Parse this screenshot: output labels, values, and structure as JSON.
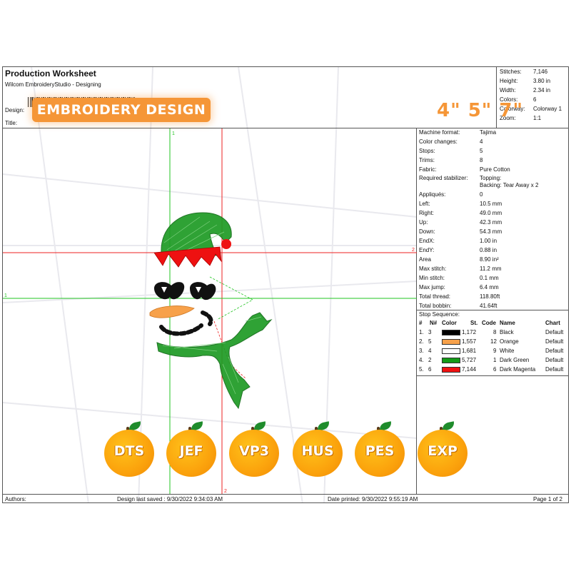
{
  "header": {
    "title": "Production Worksheet",
    "subtitle": "Wilcom EmbroideryStudio - Designing",
    "design_label": "Design:",
    "title_label": "Title:"
  },
  "badge": {
    "text": "EMBROIDERY DESIGN"
  },
  "sizes": {
    "text": "4\" 5\" 7\""
  },
  "stats": [
    {
      "label": "Stitches:",
      "value": "7,146"
    },
    {
      "label": "Height:",
      "value": "3.80 in"
    },
    {
      "label": "Width:",
      "value": "2.34 in"
    },
    {
      "label": "Colors:",
      "value": "6"
    },
    {
      "label": "Colorway:",
      "value": "Colorway 1"
    },
    {
      "label": "Zoom:",
      "value": "1:1"
    }
  ],
  "machine": [
    {
      "label": "Machine format:",
      "value": "Tajima"
    },
    {
      "label": "Color changes:",
      "value": "4"
    },
    {
      "label": "Stops:",
      "value": "5"
    },
    {
      "label": "Trims:",
      "value": "8"
    },
    {
      "label": "Fabric:",
      "value": "Pure Cotton"
    },
    {
      "label": "Required stabilizer:",
      "value": "Topping:"
    },
    {
      "label": "",
      "value": "Backing: Tear Away x 2"
    },
    {
      "label": "Appliqués:",
      "value": "0"
    },
    {
      "label": "Left:",
      "value": "10.5 mm"
    },
    {
      "label": "Right:",
      "value": "49.0 mm"
    },
    {
      "label": "Up:",
      "value": "42.3 mm"
    },
    {
      "label": "Down:",
      "value": "54.3 mm"
    },
    {
      "label": "EndX:",
      "value": "1.00 in"
    },
    {
      "label": "EndY:",
      "value": "0.88 in"
    },
    {
      "label": "Area",
      "value": "8.90 in²"
    },
    {
      "label": "Max stitch:",
      "value": "11.2 mm"
    },
    {
      "label": "Min stitch:",
      "value": "0.1 mm"
    },
    {
      "label": "Max jump:",
      "value": "6.4 mm"
    },
    {
      "label": "Total thread:",
      "value": "118.80ft"
    },
    {
      "label": "Total bobbin:",
      "value": "41.64ft"
    }
  ],
  "stop_sequence": {
    "title": "Stop Sequence:",
    "headers": {
      "num": "#",
      "n": "N#",
      "color": "Color",
      "st": "St.",
      "code": "Code",
      "name": "Name",
      "chart": "Chart"
    },
    "rows": [
      {
        "num": "1.",
        "n": "3",
        "hex": "#000000",
        "st": "1,172",
        "code": "8",
        "name": "Black",
        "chart": "Default"
      },
      {
        "num": "2.",
        "n": "5",
        "hex": "#f7a14a",
        "st": "1,557",
        "code": "12",
        "name": "Orange",
        "chart": "Default"
      },
      {
        "num": "3.",
        "n": "4",
        "hex": "#ffffff",
        "st": "1,681",
        "code": "9",
        "name": "White",
        "chart": "Default"
      },
      {
        "num": "4.",
        "n": "2",
        "hex": "#139a17",
        "st": "5,727",
        "code": "1",
        "name": "Dark Green",
        "chart": "Default"
      },
      {
        "num": "5.",
        "n": "6",
        "hex": "#ee1111",
        "st": "7,144",
        "code": "6",
        "name": "Dark Magenta",
        "chart": "Default"
      }
    ]
  },
  "guides": {
    "v1": "1",
    "v2": "2",
    "h1": "1",
    "h2": "2"
  },
  "footer": {
    "authors": "Authors:",
    "saved": "Design last saved : 9/30/2022 9:34:03 AM",
    "printed": "Date printed: 9/30/2022 9:55:19 AM",
    "page": "Page 1 of 2"
  },
  "formats": [
    "DTS",
    "JEF",
    "VP3",
    "HUS",
    "PES",
    "EXP"
  ]
}
